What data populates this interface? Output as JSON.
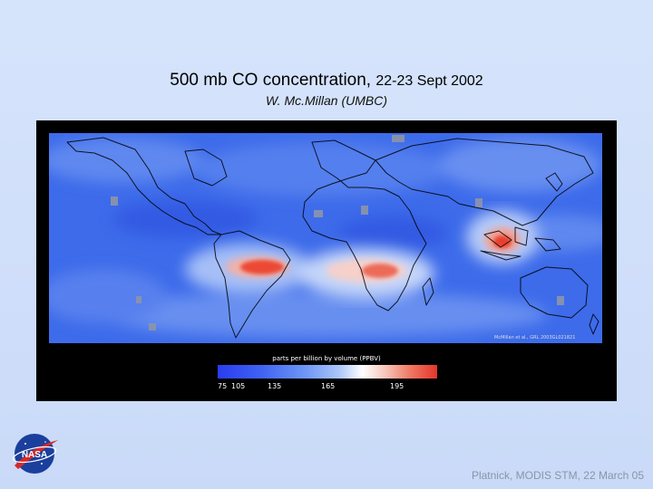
{
  "slide": {
    "title_main": "500 mb CO concentration, ",
    "title_dates": "22-23 Sept 2002",
    "author": "W. Mc.Millan (UMBC)",
    "footer": "Platnick, MODIS STM, 22 March 05"
  },
  "figure": {
    "credit": "McMillan et al., GRL 2003GL021821",
    "colorbar_label": "parts per billion by volume (PPBV)",
    "colorbar_ticks": [
      "75",
      "105",
      "135",
      "165",
      "195"
    ],
    "colors": {
      "low": "#2a3cf0",
      "background_ocean": "#3a66e8",
      "mid": "#ffffff",
      "high": "#e4352b"
    }
  },
  "logo": {
    "text": "NASA"
  }
}
